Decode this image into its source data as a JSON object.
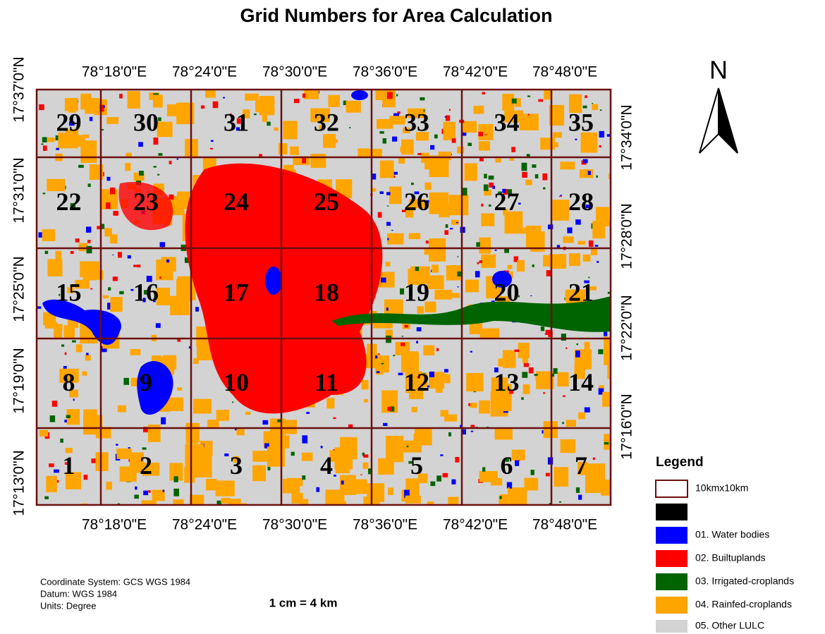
{
  "title": "Grid Numbers for Area Calculation",
  "longitude_top": [
    "78°18'0\"E",
    "78°24'0\"E",
    "78°30'0\"E",
    "78°36'0\"E",
    "78°42'0\"E",
    "78°48'0\"E"
  ],
  "longitude_bottom": [
    "78°18'0\"E",
    "78°24'0\"E",
    "78°30'0\"E",
    "78°36'0\"E",
    "78°42'0\"E",
    "78°48'0\"E"
  ],
  "latitude_left": [
    "17°37'0\"N",
    "17°31'0\"N",
    "17°25'0\"N",
    "17°19'0\"N",
    "17°13'0\"N"
  ],
  "latitude_right": [
    "17°34'0\"N",
    "17°28'0\"N",
    "17°22'0\"N",
    "17°16'0\"N"
  ],
  "grid_cells": [
    [
      "29",
      "30",
      "31",
      "32",
      "33",
      "34",
      "35"
    ],
    [
      "22",
      "23",
      "24",
      "25",
      "26",
      "27",
      "28"
    ],
    [
      "15",
      "16",
      "17",
      "18",
      "19",
      "20",
      "21"
    ],
    [
      "8",
      "9",
      "10",
      "11",
      "12",
      "13",
      "14"
    ],
    [
      "1",
      "2",
      "3",
      "4",
      "5",
      "6",
      "7"
    ]
  ],
  "north": "N",
  "legend": {
    "title": "Legend",
    "items": [
      "10kmx10km",
      "01. Water bodies",
      "02. Builtuplands",
      "03. Irrigated-croplands",
      "04. Rainfed-croplands",
      "05. Other LULC"
    ]
  },
  "notes": [
    "Coordinate System: GCS WGS 1984",
    "Datum: WGS 1984",
    "Units: Degree"
  ],
  "scale": "1 cm = 4 km"
}
